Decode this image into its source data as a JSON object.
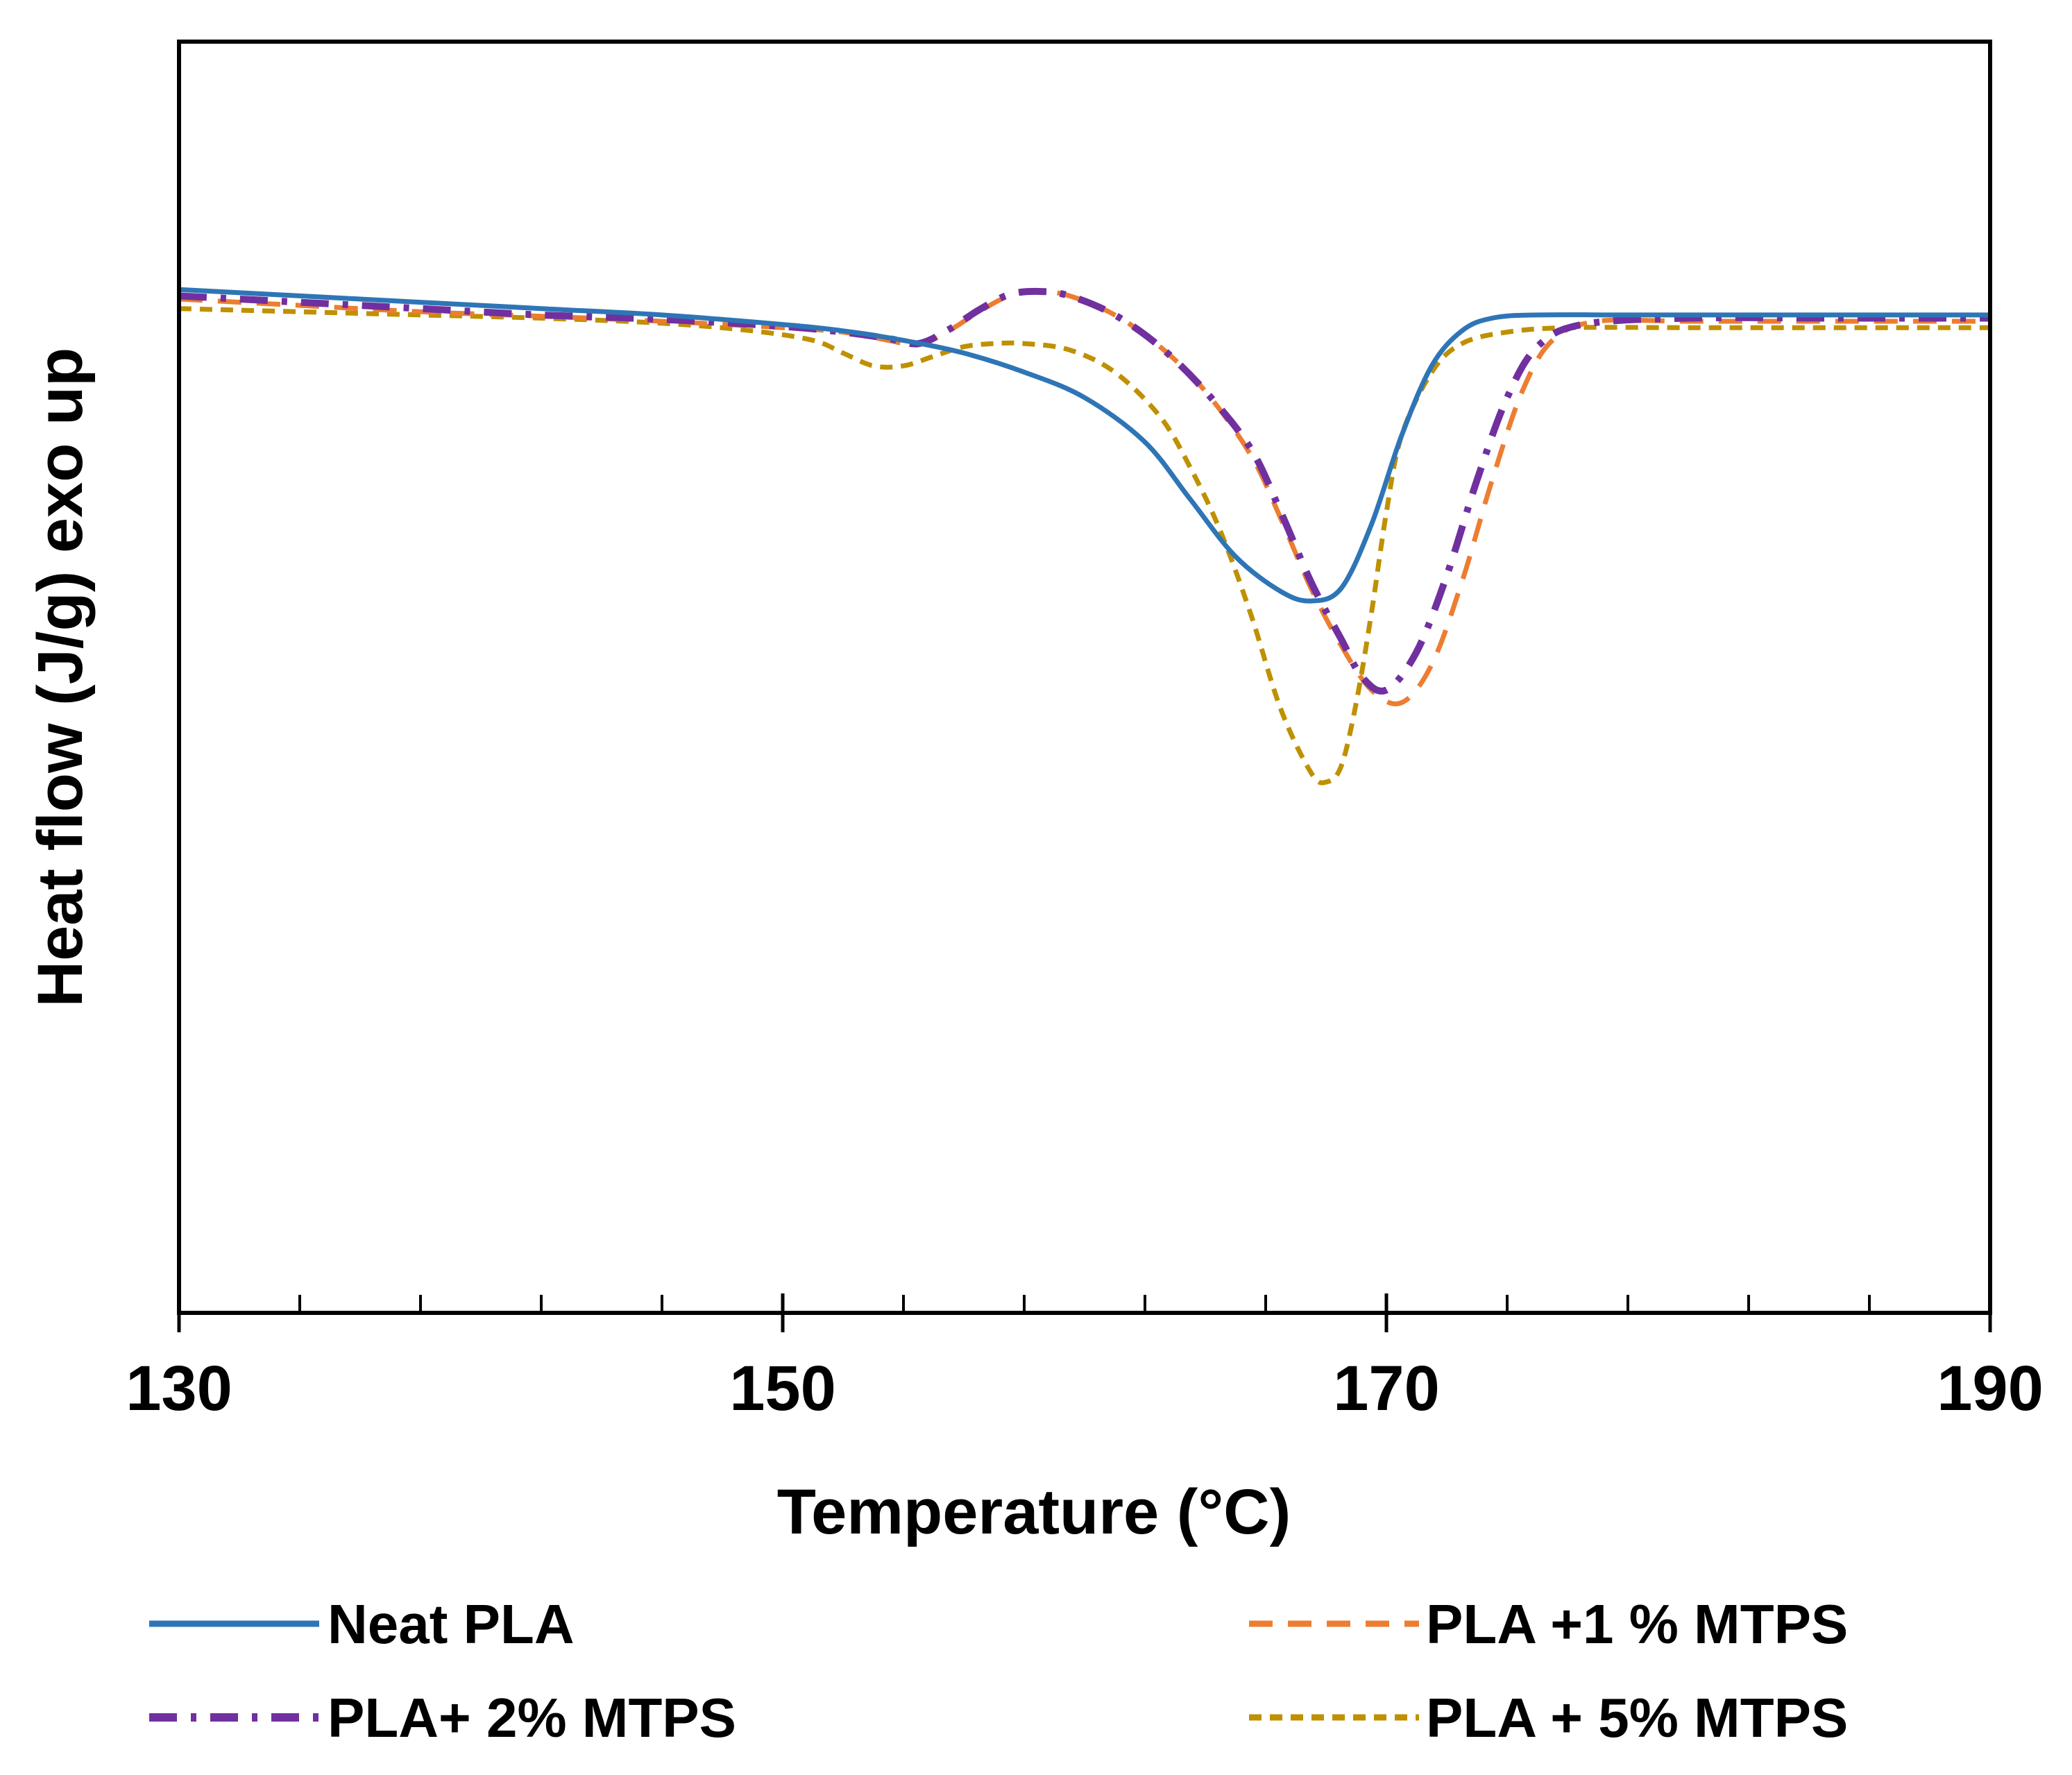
{
  "chart_data": {
    "type": "line",
    "title": "",
    "xlabel": "Temperature (°C)",
    "ylabel": "Heat flow (J/g) exo up",
    "xlim": [
      130,
      190
    ],
    "ylim": [
      -1.0,
      1.0
    ],
    "xticks": [
      130,
      150,
      170,
      190
    ],
    "xtick_labels": [
      "130",
      "150",
      "170",
      "190"
    ],
    "minor_xticks": [
      134,
      138,
      142,
      146,
      154,
      158,
      162,
      166,
      174,
      178,
      182,
      186
    ],
    "y_ticks_shown": false,
    "grid": false,
    "legend_position": "bottom",
    "series": [
      {
        "name": "Neat PLA",
        "color": "#2E75B6",
        "dash": "solid",
        "points": [
          [
            130,
            0.61
          ],
          [
            134,
            0.6
          ],
          [
            138,
            0.59
          ],
          [
            142,
            0.58
          ],
          [
            146,
            0.57
          ],
          [
            150,
            0.555
          ],
          [
            152,
            0.545
          ],
          [
            154,
            0.53
          ],
          [
            156,
            0.51
          ],
          [
            158,
            0.48
          ],
          [
            160,
            0.44
          ],
          [
            162,
            0.37
          ],
          [
            163.5,
            0.28
          ],
          [
            165,
            0.19
          ],
          [
            166.5,
            0.135
          ],
          [
            167.5,
            0.12
          ],
          [
            168.5,
            0.14
          ],
          [
            169.5,
            0.24
          ],
          [
            170.5,
            0.38
          ],
          [
            171.5,
            0.49
          ],
          [
            172.5,
            0.545
          ],
          [
            173.5,
            0.565
          ],
          [
            175,
            0.57
          ],
          [
            178,
            0.57
          ],
          [
            182,
            0.57
          ],
          [
            186,
            0.57
          ],
          [
            190,
            0.57
          ]
        ]
      },
      {
        "name": "PLA +1 % MTPS",
        "color": "#ED7D31",
        "dash": "long-dash",
        "points": [
          [
            130,
            0.595
          ],
          [
            134,
            0.585
          ],
          [
            138,
            0.575
          ],
          [
            142,
            0.568
          ],
          [
            146,
            0.56
          ],
          [
            150,
            0.55
          ],
          [
            152,
            0.543
          ],
          [
            153.5,
            0.53
          ],
          [
            154.5,
            0.523
          ],
          [
            155.5,
            0.545
          ],
          [
            156.5,
            0.575
          ],
          [
            157.5,
            0.6
          ],
          [
            158.5,
            0.607
          ],
          [
            159.5,
            0.6
          ],
          [
            161,
            0.57
          ],
          [
            162.5,
            0.52
          ],
          [
            164,
            0.45
          ],
          [
            165.5,
            0.35
          ],
          [
            166.5,
            0.25
          ],
          [
            167.5,
            0.14
          ],
          [
            168.5,
            0.05
          ],
          [
            169.5,
            -0.02
          ],
          [
            170.5,
            -0.04
          ],
          [
            171.5,
            0.02
          ],
          [
            172.5,
            0.15
          ],
          [
            173.5,
            0.31
          ],
          [
            174.5,
            0.45
          ],
          [
            175.5,
            0.53
          ],
          [
            177,
            0.56
          ],
          [
            180,
            0.56
          ],
          [
            185,
            0.56
          ],
          [
            190,
            0.56
          ]
        ]
      },
      {
        "name": "PLA+ 2% MTPS",
        "color": "#7030A0",
        "dash": "dash-dot",
        "points": [
          [
            130,
            0.6
          ],
          [
            134,
            0.59
          ],
          [
            138,
            0.58
          ],
          [
            142,
            0.57
          ],
          [
            146,
            0.563
          ],
          [
            150,
            0.552
          ],
          [
            152,
            0.543
          ],
          [
            153.5,
            0.533
          ],
          [
            154.5,
            0.525
          ],
          [
            155.5,
            0.547
          ],
          [
            156.5,
            0.578
          ],
          [
            157.5,
            0.602
          ],
          [
            158.5,
            0.607
          ],
          [
            159.5,
            0.6
          ],
          [
            161,
            0.57
          ],
          [
            162.5,
            0.52
          ],
          [
            164,
            0.45
          ],
          [
            165.5,
            0.36
          ],
          [
            166.5,
            0.26
          ],
          [
            167.5,
            0.15
          ],
          [
            168.5,
            0.06
          ],
          [
            169.2,
            0.0
          ],
          [
            170,
            -0.02
          ],
          [
            171,
            0.04
          ],
          [
            172,
            0.16
          ],
          [
            173,
            0.31
          ],
          [
            174,
            0.44
          ],
          [
            175,
            0.52
          ],
          [
            176.5,
            0.555
          ],
          [
            180,
            0.565
          ],
          [
            185,
            0.565
          ],
          [
            190,
            0.565
          ]
        ]
      },
      {
        "name": "PLA + 5% MTPS",
        "color": "#BF9000",
        "dash": "short-dash",
        "points": [
          [
            130,
            0.58
          ],
          [
            134,
            0.575
          ],
          [
            138,
            0.57
          ],
          [
            142,
            0.565
          ],
          [
            146,
            0.557
          ],
          [
            149,
            0.545
          ],
          [
            151,
            0.53
          ],
          [
            152,
            0.51
          ],
          [
            153,
            0.49
          ],
          [
            154,
            0.49
          ],
          [
            155,
            0.505
          ],
          [
            156,
            0.52
          ],
          [
            157,
            0.525
          ],
          [
            158,
            0.525
          ],
          [
            159.5,
            0.515
          ],
          [
            161,
            0.48
          ],
          [
            162.5,
            0.41
          ],
          [
            163.5,
            0.33
          ],
          [
            164.5,
            0.23
          ],
          [
            165.5,
            0.1
          ],
          [
            166.5,
            -0.05
          ],
          [
            167.5,
            -0.15
          ],
          [
            168,
            -0.165
          ],
          [
            168.5,
            -0.14
          ],
          [
            169,
            -0.04
          ],
          [
            169.5,
            0.1
          ],
          [
            170,
            0.26
          ],
          [
            170.5,
            0.38
          ],
          [
            171.5,
            0.48
          ],
          [
            172.5,
            0.525
          ],
          [
            174,
            0.543
          ],
          [
            176,
            0.55
          ],
          [
            180,
            0.55
          ],
          [
            185,
            0.55
          ],
          [
            190,
            0.55
          ]
        ]
      }
    ],
    "legend": [
      {
        "label": "Neat PLA"
      },
      {
        "label": "PLA +1 % MTPS"
      },
      {
        "label": "PLA+ 2% MTPS"
      },
      {
        "label": "PLA + 5% MTPS"
      }
    ]
  }
}
